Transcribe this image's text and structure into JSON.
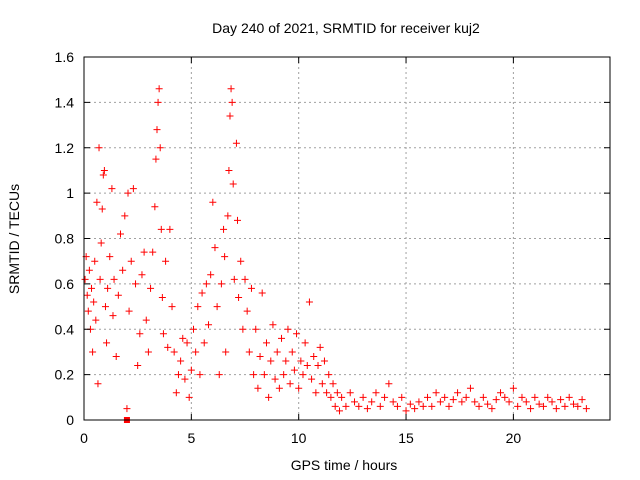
{
  "chart_data": {
    "type": "scatter",
    "title": "Day 240 of 2021, SRMTID for receiver kuj2",
    "xlabel": "GPS time / hours",
    "ylabel": "SRMTID / TECUs",
    "xlim": [
      0,
      24.5
    ],
    "ylim": [
      0,
      1.6
    ],
    "xticks": [
      0,
      5,
      10,
      15,
      20
    ],
    "yticks": [
      0,
      0.2,
      0.4,
      0.6,
      0.8,
      1,
      1.2,
      1.4,
      1.6
    ],
    "xtick_labels": [
      "0",
      "5",
      "10",
      "15",
      "20"
    ],
    "ytick_labels": [
      "0",
      "0.2",
      "0.4",
      "0.6",
      "0.8",
      "1",
      "1.2",
      "1.4",
      "1.6"
    ],
    "grid": true,
    "marker": "plus",
    "color": "#ff0000",
    "series": [
      {
        "name": "SRMTID",
        "points": [
          [
            0.05,
            0.62
          ],
          [
            0.1,
            0.72
          ],
          [
            0.15,
            0.55
          ],
          [
            0.2,
            0.48
          ],
          [
            0.25,
            0.66
          ],
          [
            0.3,
            0.4
          ],
          [
            0.35,
            0.58
          ],
          [
            0.4,
            0.3
          ],
          [
            0.45,
            0.52
          ],
          [
            0.5,
            0.7
          ],
          [
            0.55,
            0.44
          ],
          [
            0.6,
            0.96
          ],
          [
            0.65,
            0.16
          ],
          [
            0.7,
            1.2
          ],
          [
            0.75,
            0.62
          ],
          [
            0.8,
            0.78
          ],
          [
            0.85,
            0.93
          ],
          [
            0.9,
            1.08
          ],
          [
            0.95,
            1.1
          ],
          [
            1.0,
            0.5
          ],
          [
            1.05,
            0.34
          ],
          [
            1.1,
            0.58
          ],
          [
            1.2,
            0.72
          ],
          [
            1.3,
            1.02
          ],
          [
            1.35,
            0.46
          ],
          [
            1.4,
            0.62
          ],
          [
            1.5,
            0.28
          ],
          [
            1.6,
            0.55
          ],
          [
            1.7,
            0.82
          ],
          [
            1.8,
            0.66
          ],
          [
            1.9,
            0.9
          ],
          [
            2.0,
            0.05
          ],
          [
            2.05,
            1.0
          ],
          [
            2.1,
            0.48
          ],
          [
            2.2,
            0.7
          ],
          [
            2.3,
            1.02
          ],
          [
            2.4,
            0.6
          ],
          [
            2.5,
            0.24
          ],
          [
            2.6,
            0.38
          ],
          [
            2.7,
            0.64
          ],
          [
            2.8,
            0.74
          ],
          [
            2.9,
            0.44
          ],
          [
            3.0,
            0.3
          ],
          [
            3.1,
            0.58
          ],
          [
            3.2,
            0.74
          ],
          [
            3.3,
            0.94
          ],
          [
            3.35,
            1.15
          ],
          [
            3.4,
            1.28
          ],
          [
            3.45,
            1.4
          ],
          [
            3.5,
            1.46
          ],
          [
            3.55,
            1.2
          ],
          [
            3.6,
            0.84
          ],
          [
            3.65,
            0.54
          ],
          [
            3.7,
            0.38
          ],
          [
            3.8,
            0.7
          ],
          [
            3.9,
            0.32
          ],
          [
            4.0,
            0.84
          ],
          [
            4.1,
            0.5
          ],
          [
            4.2,
            0.3
          ],
          [
            4.3,
            0.12
          ],
          [
            4.4,
            0.2
          ],
          [
            4.5,
            0.26
          ],
          [
            4.6,
            0.36
          ],
          [
            4.7,
            0.18
          ],
          [
            4.8,
            0.34
          ],
          [
            4.9,
            0.1
          ],
          [
            5.0,
            0.22
          ],
          [
            5.1,
            0.4
          ],
          [
            5.2,
            0.3
          ],
          [
            5.3,
            0.5
          ],
          [
            5.4,
            0.2
          ],
          [
            5.5,
            0.56
          ],
          [
            5.6,
            0.34
          ],
          [
            5.7,
            0.6
          ],
          [
            5.8,
            0.42
          ],
          [
            5.9,
            0.64
          ],
          [
            6.0,
            0.96
          ],
          [
            6.1,
            0.76
          ],
          [
            6.2,
            0.5
          ],
          [
            6.3,
            0.2
          ],
          [
            6.4,
            0.6
          ],
          [
            6.5,
            0.84
          ],
          [
            6.55,
            0.72
          ],
          [
            6.6,
            0.3
          ],
          [
            6.7,
            0.9
          ],
          [
            6.75,
            1.1
          ],
          [
            6.8,
            1.34
          ],
          [
            6.85,
            1.46
          ],
          [
            6.9,
            1.4
          ],
          [
            6.95,
            1.04
          ],
          [
            7.0,
            0.62
          ],
          [
            7.1,
            1.22
          ],
          [
            7.15,
            0.88
          ],
          [
            7.2,
            0.54
          ],
          [
            7.3,
            0.7
          ],
          [
            7.4,
            0.4
          ],
          [
            7.5,
            0.62
          ],
          [
            7.6,
            0.48
          ],
          [
            7.7,
            0.3
          ],
          [
            7.8,
            0.58
          ],
          [
            7.9,
            0.2
          ],
          [
            8.0,
            0.4
          ],
          [
            8.1,
            0.14
          ],
          [
            8.2,
            0.28
          ],
          [
            8.3,
            0.56
          ],
          [
            8.4,
            0.2
          ],
          [
            8.5,
            0.34
          ],
          [
            8.6,
            0.1
          ],
          [
            8.7,
            0.26
          ],
          [
            8.8,
            0.42
          ],
          [
            8.9,
            0.18
          ],
          [
            9.0,
            0.3
          ],
          [
            9.1,
            0.14
          ],
          [
            9.2,
            0.36
          ],
          [
            9.3,
            0.2
          ],
          [
            9.4,
            0.26
          ],
          [
            9.5,
            0.4
          ],
          [
            9.6,
            0.16
          ],
          [
            9.7,
            0.3
          ],
          [
            9.8,
            0.22
          ],
          [
            9.9,
            0.38
          ],
          [
            10.0,
            0.14
          ],
          [
            10.1,
            0.26
          ],
          [
            10.2,
            0.2
          ],
          [
            10.3,
            0.34
          ],
          [
            10.4,
            0.24
          ],
          [
            10.5,
            0.52
          ],
          [
            10.6,
            0.18
          ],
          [
            10.7,
            0.28
          ],
          [
            10.8,
            0.12
          ],
          [
            10.9,
            0.24
          ],
          [
            11.0,
            0.32
          ],
          [
            11.1,
            0.16
          ],
          [
            11.2,
            0.26
          ],
          [
            11.3,
            0.12
          ],
          [
            11.4,
            0.2
          ],
          [
            11.5,
            0.1
          ],
          [
            11.6,
            0.16
          ],
          [
            11.7,
            0.06
          ],
          [
            11.8,
            0.12
          ],
          [
            11.9,
            0.04
          ],
          [
            12.0,
            0.1
          ],
          [
            12.2,
            0.06
          ],
          [
            12.4,
            0.12
          ],
          [
            12.6,
            0.08
          ],
          [
            12.8,
            0.06
          ],
          [
            13.0,
            0.1
          ],
          [
            13.2,
            0.05
          ],
          [
            13.4,
            0.08
          ],
          [
            13.6,
            0.12
          ],
          [
            13.8,
            0.06
          ],
          [
            14.0,
            0.1
          ],
          [
            14.2,
            0.16
          ],
          [
            14.4,
            0.08
          ],
          [
            14.6,
            0.06
          ],
          [
            14.8,
            0.1
          ],
          [
            15.0,
            0.04
          ],
          [
            15.2,
            0.07
          ],
          [
            15.4,
            0.05
          ],
          [
            15.6,
            0.08
          ],
          [
            15.8,
            0.06
          ],
          [
            16.0,
            0.1
          ],
          [
            16.2,
            0.06
          ],
          [
            16.4,
            0.12
          ],
          [
            16.6,
            0.08
          ],
          [
            16.8,
            0.1
          ],
          [
            17.0,
            0.06
          ],
          [
            17.2,
            0.09
          ],
          [
            17.4,
            0.12
          ],
          [
            17.6,
            0.08
          ],
          [
            17.8,
            0.1
          ],
          [
            18.0,
            0.14
          ],
          [
            18.2,
            0.08
          ],
          [
            18.4,
            0.06
          ],
          [
            18.6,
            0.1
          ],
          [
            18.8,
            0.07
          ],
          [
            19.0,
            0.05
          ],
          [
            19.2,
            0.09
          ],
          [
            19.4,
            0.12
          ],
          [
            19.6,
            0.1
          ],
          [
            19.8,
            0.08
          ],
          [
            20.0,
            0.14
          ],
          [
            20.2,
            0.06
          ],
          [
            20.4,
            0.1
          ],
          [
            20.6,
            0.08
          ],
          [
            20.8,
            0.05
          ],
          [
            21.0,
            0.1
          ],
          [
            21.2,
            0.07
          ],
          [
            21.4,
            0.06
          ],
          [
            21.6,
            0.1
          ],
          [
            21.8,
            0.08
          ],
          [
            22.0,
            0.05
          ],
          [
            22.2,
            0.09
          ],
          [
            22.4,
            0.06
          ],
          [
            22.6,
            0.1
          ],
          [
            22.8,
            0.07
          ],
          [
            23.0,
            0.06
          ],
          [
            23.2,
            0.09
          ],
          [
            23.4,
            0.05
          ]
        ]
      }
    ],
    "outlier_square": [
      2.0,
      0.0
    ]
  }
}
